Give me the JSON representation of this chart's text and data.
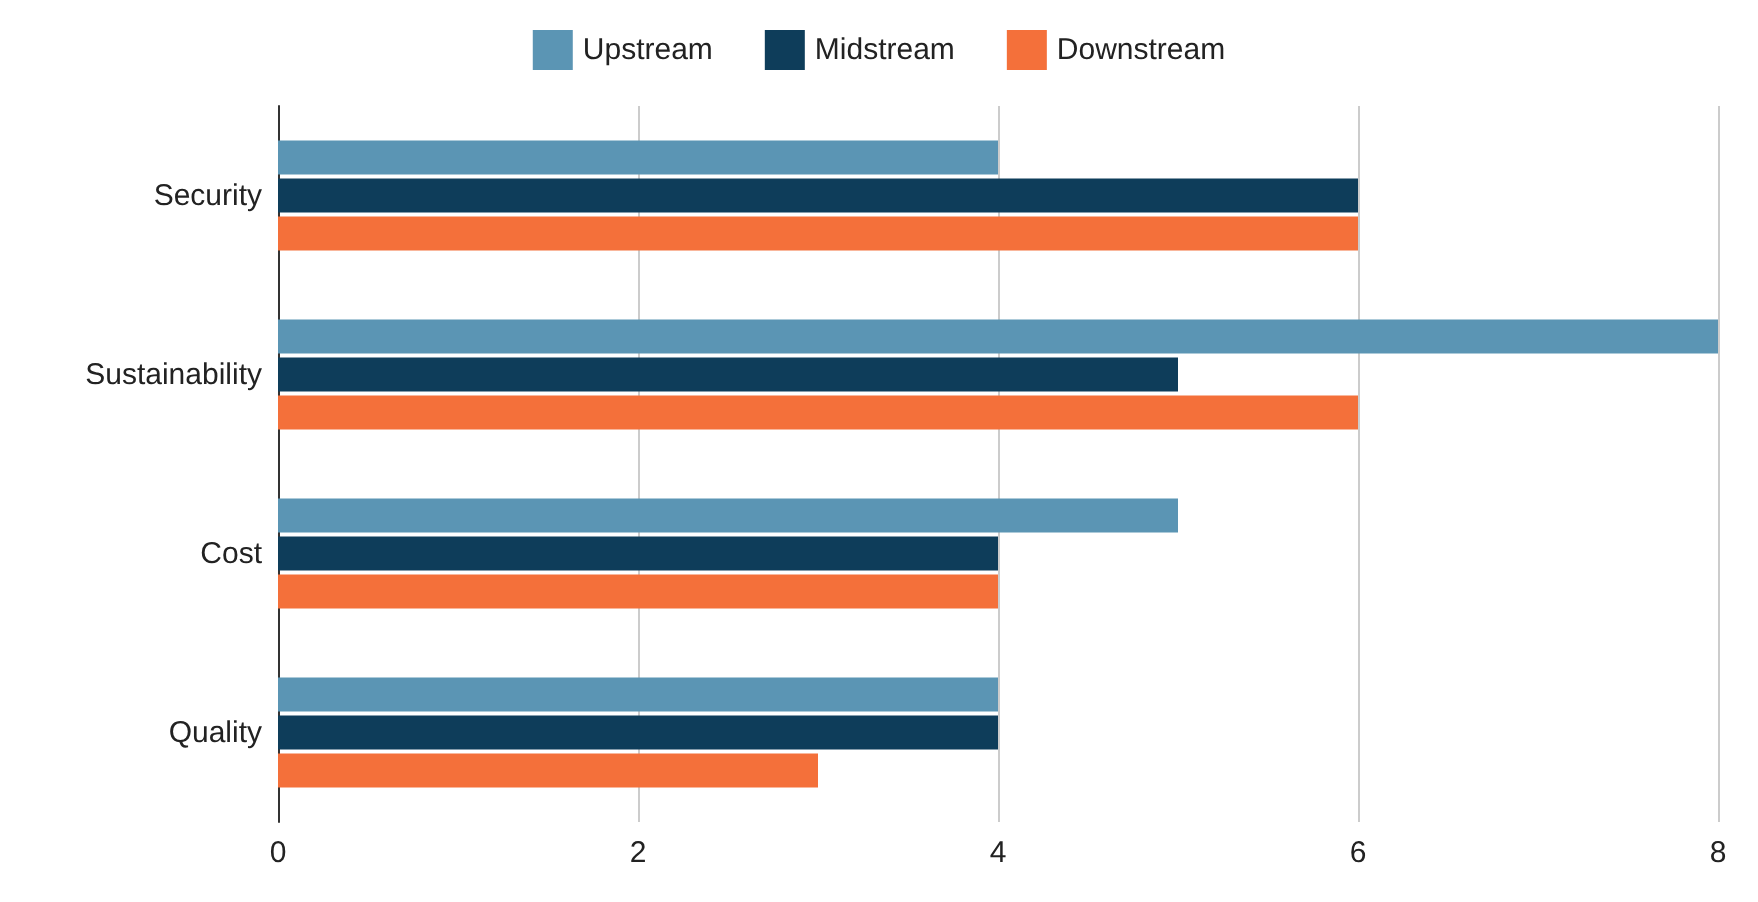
{
  "chart_data": {
    "type": "bar",
    "orientation": "horizontal",
    "categories": [
      "Security",
      "Sustainability",
      "Cost",
      "Quality"
    ],
    "series": [
      {
        "name": "Upstream",
        "color": "#5b95b4",
        "values": [
          4,
          8,
          5,
          4
        ]
      },
      {
        "name": "Midstream",
        "color": "#0e3d5a",
        "values": [
          6,
          5,
          4,
          4
        ]
      },
      {
        "name": "Downstream",
        "color": "#f4703a",
        "values": [
          6,
          6,
          4,
          3
        ]
      }
    ],
    "xlim": [
      0,
      8
    ],
    "xticks": [
      0,
      2,
      4,
      6,
      8
    ],
    "grid": "x",
    "legend": "top"
  }
}
